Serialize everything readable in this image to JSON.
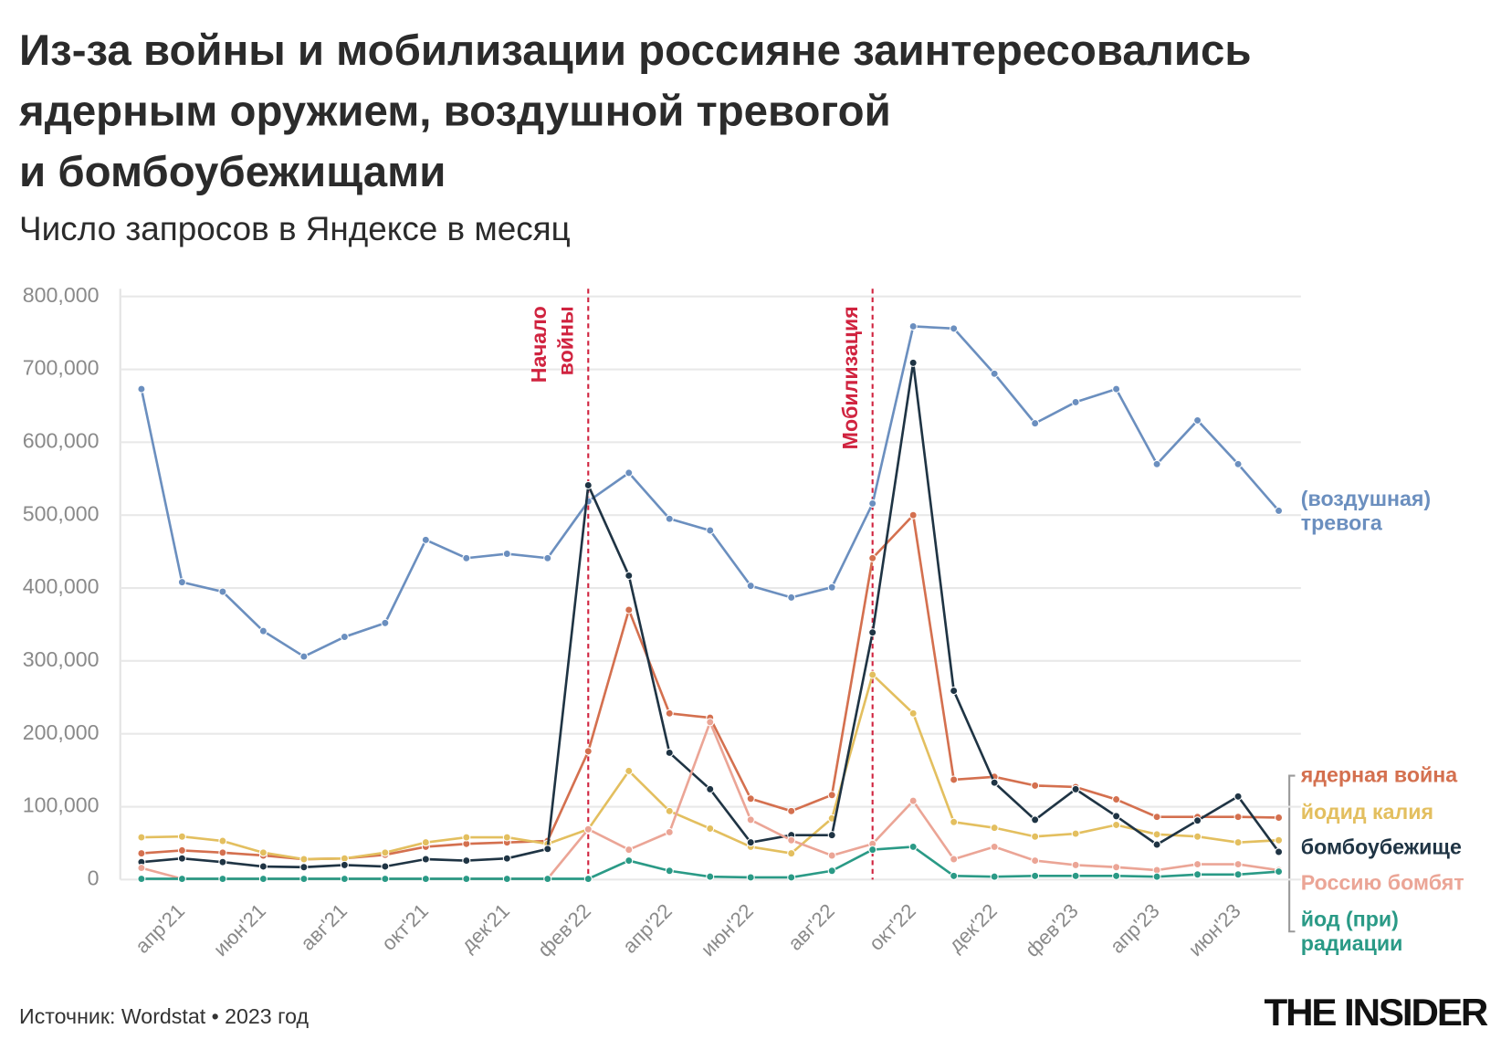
{
  "chart_data": {
    "type": "line",
    "title": "Из-за войны и мобилизации россияне заинтересовались ядерным оружием, воздушной тревогой и бомбоубежищами",
    "subtitle": "Число запросов в Яндексе в месяц",
    "source": "Источник: Wordstat • 2023 год",
    "brand": "THE INSIDER",
    "annotations": [
      "Начало войны",
      "Мобилизация"
    ],
    "categories": [
      null,
      "апр'21",
      null,
      "июн'21",
      null,
      "авг'21",
      null,
      "окт'21",
      null,
      "дек'21",
      null,
      "фев'22",
      null,
      "апр'22",
      null,
      "июн'22",
      null,
      "авг'22",
      null,
      "окт'22",
      null,
      "дек'22",
      null,
      "фев'23",
      null,
      "апр'23",
      null,
      "июн'23",
      null
    ],
    "ylim": [
      0,
      800000
    ],
    "yticks": [
      0,
      {
        "value": 100000,
        "label": "100,000"
      },
      {
        "value": 200000,
        "label": "200,000"
      },
      {
        "value": 300000,
        "label": "300,000"
      },
      {
        "value": 400000,
        "label": "400,000"
      },
      {
        "value": 500000,
        "label": "500,000"
      },
      {
        "value": 600000,
        "label": "600,000"
      },
      {
        "value": 700000,
        "label": "700,000"
      },
      {
        "value": 800000,
        "label": "800,000"
      }
    ],
    "grid": true,
    "series": [
      {
        "name": "(воздушная) тревога",
        "color": "#6b8fbf",
        "values": [
          673000,
          408000,
          395000,
          341000,
          306000,
          333000,
          352000,
          466000,
          441000,
          447000,
          441000,
          519000,
          558000,
          495000,
          479000,
          403000,
          387000,
          401000,
          516000,
          759000,
          756000,
          694000,
          626000,
          655000,
          673000,
          570000,
          630000,
          570000,
          506000
        ]
      },
      {
        "name": "ядерная война",
        "color": "#d4704f",
        "values": [
          36000,
          40000,
          37000,
          33000,
          28000,
          29000,
          34000,
          45000,
          49000,
          51000,
          53000,
          176000,
          370000,
          228000,
          222000,
          111000,
          94000,
          116000,
          441000,
          500000,
          137000,
          141000,
          129000,
          127000,
          110000,
          86000,
          86000,
          86000,
          85000
        ]
      },
      {
        "name": "йодид калия",
        "color": "#e3bf5f",
        "values": [
          58000,
          59000,
          53000,
          37000,
          28000,
          29000,
          37000,
          51000,
          58000,
          58000,
          49000,
          69000,
          149000,
          94000,
          70000,
          45000,
          36000,
          84000,
          281000,
          228000,
          79000,
          71000,
          59000,
          63000,
          75000,
          62000,
          59000,
          51000,
          54000
        ]
      },
      {
        "name": "бомбоубежище",
        "color": "#1f3444",
        "values": [
          24000,
          29000,
          24000,
          18000,
          17000,
          20000,
          18000,
          28000,
          26000,
          29000,
          42000,
          541000,
          417000,
          174000,
          124000,
          51000,
          61000,
          61000,
          339000,
          709000,
          259000,
          133000,
          82000,
          124000,
          87000,
          48000,
          81000,
          114000,
          38000
        ]
      },
      {
        "name": "Россию бомбят",
        "color": "#eba596",
        "values": [
          16000,
          1000,
          1000,
          1000,
          1000,
          1000,
          1000,
          1000,
          1000,
          1000,
          1000,
          69000,
          41000,
          65000,
          216000,
          82000,
          54000,
          33000,
          49000,
          108000,
          28000,
          45000,
          26000,
          20000,
          17000,
          13000,
          21000,
          21000,
          13000
        ]
      },
      {
        "name": "йод (при) радиации",
        "color": "#2a9a86",
        "values": [
          1000,
          1000,
          1000,
          1000,
          1000,
          1000,
          1000,
          1000,
          1000,
          1000,
          1000,
          1000,
          26000,
          12000,
          4000,
          3000,
          3000,
          12000,
          41000,
          45000,
          5000,
          4000,
          5000,
          5000,
          5000,
          4000,
          7000,
          7000,
          11000
        ]
      }
    ]
  }
}
